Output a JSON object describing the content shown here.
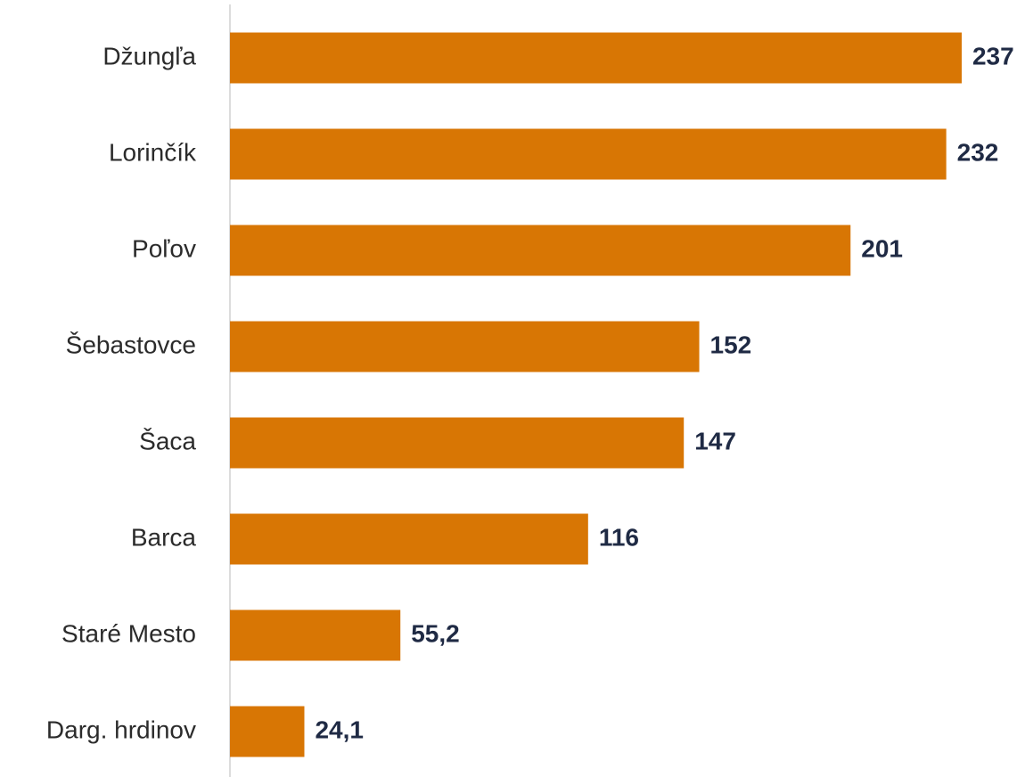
{
  "chart_data": {
    "type": "hbar",
    "categories": [
      "Džungľa",
      "Lorinčík",
      "Poľov",
      "Šebastovce",
      "Šaca",
      "Barca",
      "Staré Mesto",
      "Darg. hrdinov"
    ],
    "values": [
      237,
      232,
      201,
      152,
      147,
      116,
      55.2,
      24.1
    ],
    "value_labels": [
      "237",
      "232",
      "201",
      "152",
      "147",
      "116",
      "55,2",
      "24,1"
    ],
    "color": "#d87604",
    "xlim": [
      0,
      250
    ]
  }
}
